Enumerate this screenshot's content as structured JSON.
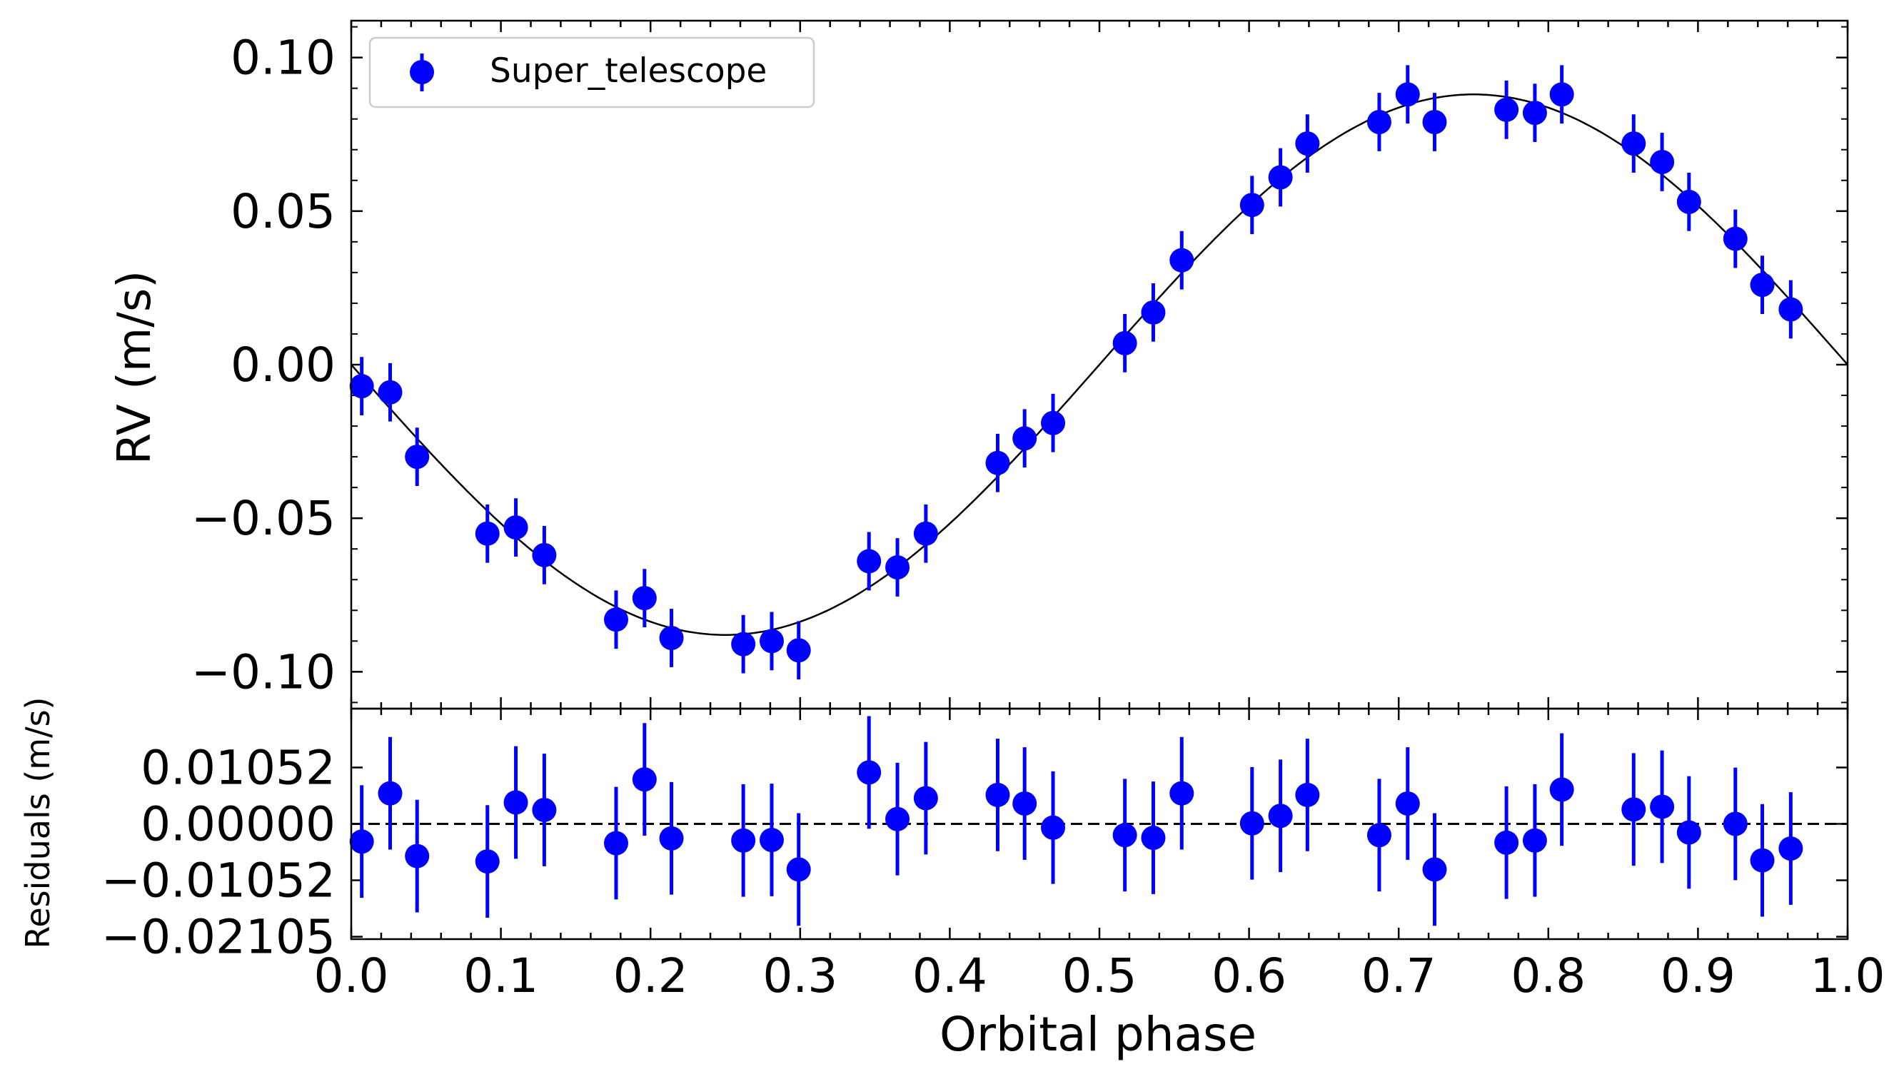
{
  "chart_data": {
    "type": "scatter",
    "title": "",
    "colors": {
      "points": "#0000ff",
      "model": "#000000",
      "axes": "#000000",
      "legend_border": "#cccccc"
    },
    "legend": {
      "label": "Super_telescope",
      "placement": "top-left"
    },
    "xlabel": "Orbital phase",
    "xlim": [
      0.0,
      1.0
    ],
    "xticks": [
      "0.0",
      "0.1",
      "0.2",
      "0.3",
      "0.4",
      "0.5",
      "0.6",
      "0.7",
      "0.8",
      "0.9",
      "1.0"
    ],
    "xtick_values": [
      0.0,
      0.1,
      0.2,
      0.3,
      0.4,
      0.5,
      0.6,
      0.7,
      0.8,
      0.9,
      1.0
    ],
    "panels": {
      "rv": {
        "ylabel": "RV (m/s)",
        "ylim": [
          -0.112,
          0.112
        ],
        "yticks": [
          "0.10",
          "0.05",
          "0.00",
          "−0.05",
          "−0.10"
        ],
        "ytick_values": [
          0.1,
          0.05,
          0.0,
          -0.05,
          -0.1
        ],
        "model": {
          "type": "sinusoid",
          "amplitude": 0.088,
          "formula": "-A*sin(2*pi*phase)"
        },
        "error": 0.0095,
        "x": [
          0.007,
          0.026,
          0.044,
          0.091,
          0.11,
          0.129,
          0.177,
          0.196,
          0.214,
          0.262,
          0.281,
          0.299,
          0.346,
          0.365,
          0.384,
          0.432,
          0.45,
          0.469,
          0.517,
          0.536,
          0.555,
          0.602,
          0.621,
          0.639,
          0.687,
          0.706,
          0.724,
          0.772,
          0.791,
          0.809,
          0.857,
          0.876,
          0.894,
          0.925,
          0.943,
          0.962
        ],
        "y": [
          -0.007,
          -0.009,
          -0.03,
          -0.055,
          -0.053,
          -0.062,
          -0.083,
          -0.076,
          -0.089,
          -0.091,
          -0.09,
          -0.093,
          -0.064,
          -0.066,
          -0.055,
          -0.032,
          -0.024,
          -0.019,
          0.007,
          0.017,
          0.034,
          0.052,
          0.061,
          0.072,
          0.079,
          0.088,
          0.079,
          0.083,
          0.082,
          0.088,
          0.072,
          0.066,
          0.053,
          0.041,
          0.026,
          0.018
        ]
      },
      "residuals": {
        "ylabel": "Residuals (m/s)",
        "ylim": [
          -0.0215,
          0.0215
        ],
        "yticks": [
          "0.01052",
          "0.00000",
          "−0.01052",
          "−0.02105"
        ],
        "ytick_values": [
          0.01052,
          0.0,
          -0.01052,
          -0.02105
        ],
        "reference_line": 0.0,
        "error": 0.0105,
        "x": [
          0.007,
          0.026,
          0.044,
          0.091,
          0.11,
          0.129,
          0.177,
          0.196,
          0.214,
          0.262,
          0.281,
          0.299,
          0.346,
          0.365,
          0.384,
          0.432,
          0.45,
          0.469,
          0.517,
          0.536,
          0.555,
          0.602,
          0.621,
          0.639,
          0.687,
          0.706,
          0.724,
          0.772,
          0.791,
          0.809,
          0.857,
          0.876,
          0.894,
          0.925,
          0.943,
          0.962
        ],
        "y": [
          -0.0033,
          0.0057,
          -0.006,
          -0.007,
          0.004,
          0.0026,
          -0.0036,
          0.0083,
          -0.0027,
          -0.0031,
          -0.003,
          -0.0085,
          0.0096,
          0.0009,
          0.0048,
          0.0054,
          0.0038,
          -0.0007,
          -0.0021,
          -0.0026,
          0.0057,
          0.0001,
          0.0015,
          0.0054,
          -0.0021,
          0.0038,
          -0.0085,
          -0.0035,
          -0.0031,
          0.0064,
          0.0027,
          0.0032,
          -0.0016,
          0.0,
          -0.0068,
          -0.0046
        ]
      }
    }
  }
}
